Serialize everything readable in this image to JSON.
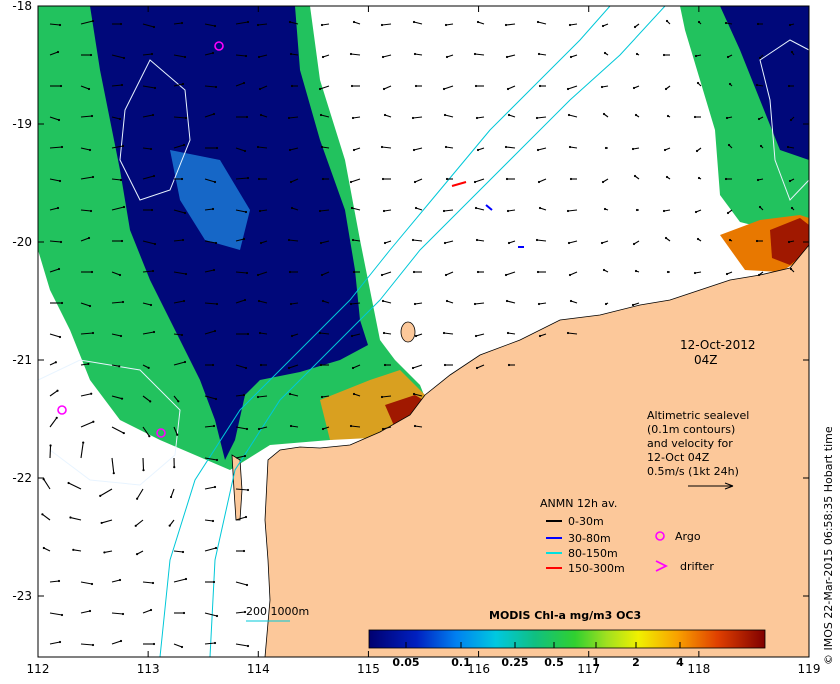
{
  "map": {
    "date_label": "12-Oct-2012",
    "time_label": "04Z",
    "x_ticks": [
      "112",
      "113",
      "114",
      "115",
      "116",
      "117",
      "118",
      "119"
    ],
    "y_ticks": [
      "-18",
      "-19",
      "-20",
      "-21",
      "-22",
      "-23"
    ]
  },
  "altimetry_note": {
    "lines": [
      "Altimetric sealevel",
      "(0.1m contours)",
      "and velocity for",
      "12-Oct 04Z",
      "0.5m/s (1kt 24h)"
    ]
  },
  "anmn_legend": {
    "title": "ANMN 12h av.",
    "items": [
      {
        "label": "0-30m",
        "color": "#000000"
      },
      {
        "label": "30-80m",
        "color": "#0000ff"
      },
      {
        "label": "80-150m",
        "color": "#00e0e0"
      },
      {
        "label": "150-300m",
        "color": "#ff0000"
      }
    ]
  },
  "symbol_legend": {
    "argo_label": "Argo",
    "drifter_label": "drifter",
    "symbol_color": "#ff00ff"
  },
  "depth_contours": {
    "label": "200  1000m",
    "color": "#00c8d8"
  },
  "colorbar": {
    "title": "MODIS Chl-a mg/m3 OC3",
    "ticks": [
      "0.05",
      "0.1",
      "0.25",
      "0.5",
      "1",
      "2",
      "4"
    ]
  },
  "credit": "© IMOS 22-Mar-2015 06:58:35 Hobart time",
  "colors": {
    "land": "#fcc89a",
    "coast": "#000000",
    "low_chl": "#00007a",
    "mid_chl": "#1cbf60",
    "high_chl": "#a01800"
  }
}
